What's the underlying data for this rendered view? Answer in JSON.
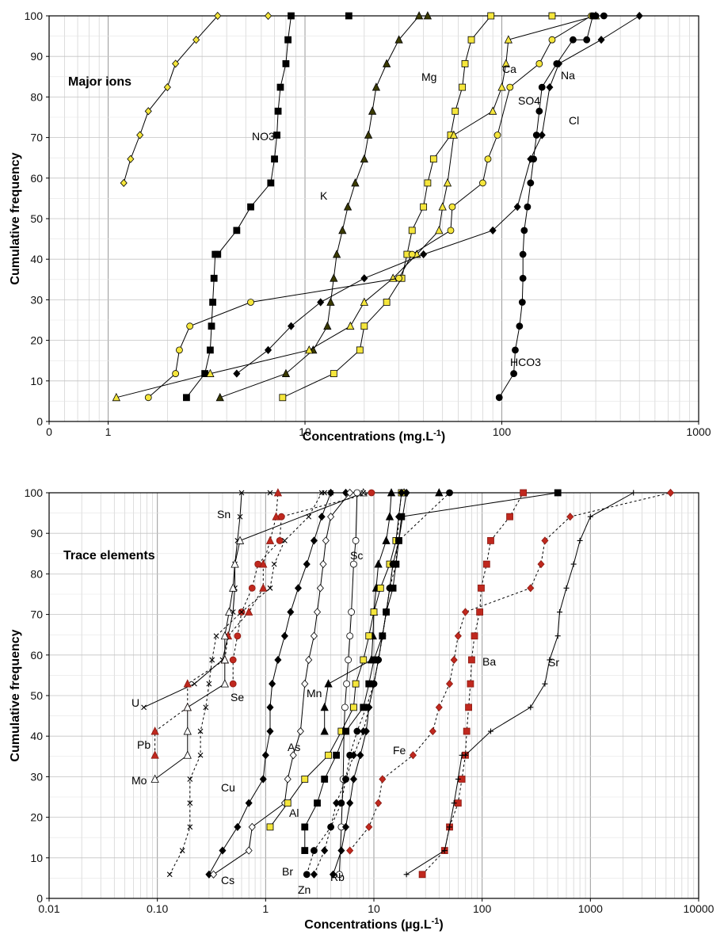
{
  "chart_data": [
    {
      "type": "line",
      "title": "Major ions",
      "ylabel": "Cumulative frequency",
      "xlabel": "Concentrations (mg.L-1)",
      "xlabel_main": "Concentrations (mg.L",
      "xlabel_sup": "-1",
      "xlabel_tail": ")",
      "xscale": "log",
      "xlim": [
        0,
        1000
      ],
      "ylim": [
        0,
        100
      ],
      "grid": true,
      "x_tick_labels": [
        "0",
        "1",
        "10",
        "100",
        "1000"
      ],
      "y_tick_labels": [
        "0",
        "10",
        "20",
        "30",
        "40",
        "50",
        "60",
        "70",
        "80",
        "90",
        "100"
      ],
      "series": [
        {
          "name": "NO3",
          "marker": "diamond",
          "fill": "#f5e63c",
          "dash": "",
          "x": [
            1.2,
            1.3,
            1.45,
            1.6,
            2.0,
            2.2,
            2.8,
            3.6,
            6.5
          ],
          "y": [
            58.8,
            64.7,
            70.6,
            76.5,
            82.4,
            88.2,
            94.1,
            100,
            100
          ]
        },
        {
          "name": "K",
          "marker": "square",
          "fill": "#000000",
          "dash": "",
          "x": [
            2.5,
            3.1,
            3.3,
            3.35,
            3.4,
            3.45,
            3.5,
            3.6,
            4.5,
            5.3,
            6.7,
            7.0,
            7.2,
            7.3,
            7.5,
            8.0,
            8.2,
            8.5,
            16.7
          ],
          "y": [
            5.9,
            11.8,
            17.6,
            23.5,
            29.4,
            35.3,
            41.2,
            41.2,
            47.1,
            52.9,
            58.8,
            64.7,
            70.6,
            76.5,
            82.4,
            88.2,
            94.1,
            100,
            100
          ]
        },
        {
          "name": "Mg",
          "marker": "triangle",
          "fill": "#3a3a00",
          "dash": "",
          "x": [
            3.7,
            8.0,
            11.0,
            13.0,
            13.5,
            14.0,
            14.5,
            15.5,
            16.5,
            18.0,
            20.0,
            21.0,
            22.0,
            23.0,
            26.0,
            30.0,
            38.0,
            42.0
          ],
          "y": [
            5.9,
            11.8,
            17.6,
            23.5,
            29.4,
            35.3,
            41.2,
            47.1,
            52.9,
            58.8,
            64.7,
            70.6,
            76.5,
            82.4,
            88.2,
            94.1,
            100,
            100
          ]
        },
        {
          "name": "Ca",
          "marker": "square",
          "fill": "#f5e63c",
          "dash": "",
          "x": [
            7.7,
            14.0,
            19.0,
            20.0,
            26.0,
            31.0,
            33.0,
            35.0,
            40.0,
            42.0,
            45.0,
            55.0,
            58.0,
            63.0,
            65.0,
            70.0,
            88.0,
            180.0
          ],
          "y": [
            5.9,
            11.8,
            17.6,
            23.5,
            29.4,
            35.3,
            41.2,
            47.1,
            52.9,
            58.8,
            64.7,
            70.6,
            76.5,
            82.4,
            88.2,
            94.1,
            100,
            100
          ]
        },
        {
          "name": "SO4",
          "marker": "triangle",
          "fill": "#f5e63c",
          "dash": "",
          "x": [
            1.1,
            3.3,
            10.5,
            17.0,
            20.0,
            28.0,
            37.0,
            48.0,
            50.0,
            53.0,
            57.0,
            90.0,
            100.0,
            105.0,
            108.0,
            300.0
          ],
          "y": [
            5.9,
            11.8,
            17.6,
            23.5,
            29.4,
            35.3,
            41.2,
            47.1,
            52.9,
            58.8,
            70.6,
            76.5,
            82.4,
            88.2,
            94.1,
            100
          ]
        },
        {
          "name": "Na",
          "marker": "circle",
          "fill": "#f5e63c",
          "dash": "",
          "x": [
            1.6,
            2.2,
            2.3,
            2.6,
            5.3,
            30.0,
            35.0,
            55.0,
            56.0,
            80.0,
            85.0,
            95.0,
            110.0,
            155.0,
            180.0,
            285.0
          ],
          "y": [
            5.9,
            11.8,
            17.6,
            23.5,
            29.4,
            35.3,
            41.2,
            47.1,
            52.9,
            58.8,
            64.7,
            70.6,
            82.4,
            88.2,
            94.1,
            100
          ]
        },
        {
          "name": "Cl",
          "marker": "diamond",
          "fill": "#000000",
          "dash": "",
          "x": [
            4.5,
            6.5,
            8.5,
            12.0,
            20.0,
            40.0,
            90.0,
            120.0,
            140.0,
            160.0,
            175.0,
            195.0,
            320.0,
            500.0
          ],
          "y": [
            11.8,
            17.6,
            23.5,
            29.4,
            35.3,
            41.2,
            47.1,
            52.9,
            64.7,
            70.6,
            82.4,
            88.2,
            94.1,
            100
          ]
        },
        {
          "name": "HCO3",
          "marker": "circle",
          "fill": "#000000",
          "dash": "",
          "x": [
            97.0,
            115.0,
            117.0,
            123.0,
            127.0,
            128.0,
            128.0,
            130.0,
            135.0,
            140.0,
            145.0,
            150.0,
            155.0,
            160.0,
            190.0,
            230.0,
            270.0,
            290.0,
            300.0,
            330.0
          ],
          "y": [
            5.9,
            11.8,
            17.6,
            23.5,
            29.4,
            35.3,
            41.2,
            47.1,
            52.9,
            58.8,
            64.7,
            70.6,
            76.5,
            82.4,
            88.2,
            94.1,
            94.1,
            100,
            100,
            100
          ]
        }
      ]
    },
    {
      "type": "line",
      "title": "Trace elements",
      "ylabel": "Cumulative frequency",
      "xlabel": "Concentrations (µg.L-1)",
      "xlabel_main": "Concentrations (µg.L",
      "xlabel_sup": "-1",
      "xlabel_tail": ")",
      "xscale": "log",
      "xlim": [
        0.01,
        10000
      ],
      "ylim": [
        0,
        100
      ],
      "grid": true,
      "x_tick_labels": [
        "0.01",
        "0.10",
        "1",
        "10",
        "100",
        "1000",
        "10000"
      ],
      "y_tick_labels": [
        "0",
        "10",
        "20",
        "30",
        "40",
        "50",
        "60",
        "70",
        "80",
        "90",
        "100"
      ],
      "series": [
        {
          "name": "U",
          "marker": "x",
          "fill": "#000000",
          "dash": "",
          "x": [
            0.075,
            0.22,
            0.4,
            0.45,
            0.5,
            0.52,
            0.52,
            0.55,
            0.58,
            0.6,
            1.1
          ],
          "y": [
            47.1,
            52.9,
            58.8,
            64.7,
            70.6,
            76.5,
            82.4,
            88.2,
            94.1,
            100,
            100
          ]
        },
        {
          "name": "Pb",
          "marker": "triangle",
          "fill": "#c0281e",
          "dash": "3,3",
          "x": [
            0.095,
            0.095,
            0.19,
            0.19,
            0.42,
            0.45,
            0.7,
            0.95,
            0.95,
            1.1,
            1.25,
            1.3
          ],
          "y": [
            35.3,
            41.2,
            47.1,
            52.9,
            58.8,
            64.7,
            70.6,
            76.5,
            82.4,
            88.2,
            94.1,
            100
          ]
        },
        {
          "name": "Mo",
          "marker": "triangle-open",
          "fill": "#ffffff",
          "dash": "",
          "x": [
            0.095,
            0.19,
            0.19,
            0.19,
            0.42,
            0.42,
            0.42,
            0.46,
            0.5,
            0.52,
            0.58,
            8.0
          ],
          "y": [
            29.4,
            35.3,
            41.2,
            47.1,
            52.9,
            58.8,
            64.7,
            70.6,
            76.5,
            82.4,
            88.2,
            100
          ]
        },
        {
          "name": "Se",
          "marker": "circle",
          "fill": "#c0281e",
          "dash": "3,3",
          "x": [
            0.5,
            0.5,
            0.55,
            0.6,
            0.75,
            0.85,
            1.35,
            1.4,
            9.5
          ],
          "y": [
            52.9,
            58.8,
            64.7,
            70.6,
            76.5,
            82.4,
            88.2,
            94.1,
            100
          ]
        },
        {
          "name": "Sn",
          "marker": "x",
          "fill": "#000000",
          "dash": "3,3",
          "x": [
            0.13,
            0.17,
            0.2,
            0.2,
            0.2,
            0.25,
            0.25,
            0.28,
            0.3,
            0.32,
            0.35,
            0.6,
            1.1,
            1.2,
            1.5,
            2.5,
            3.3,
            3.5,
            4.0,
            8.0
          ],
          "y": [
            5.9,
            11.8,
            17.6,
            23.5,
            29.4,
            35.3,
            41.2,
            47.1,
            52.9,
            58.8,
            64.7,
            70.6,
            76.5,
            82.4,
            88.2,
            94.1,
            100,
            100,
            100,
            100
          ]
        },
        {
          "name": "Cu",
          "marker": "diamond",
          "fill": "#000000",
          "dash": "",
          "x": [
            0.3,
            0.4,
            0.55,
            0.7,
            0.95,
            1.0,
            1.1,
            1.1,
            1.15,
            1.3,
            1.5,
            1.7,
            2.0,
            2.4,
            2.8,
            3.3,
            4.0,
            5.5
          ],
          "y": [
            5.9,
            11.8,
            17.6,
            23.5,
            29.4,
            35.3,
            41.2,
            47.1,
            52.9,
            58.8,
            64.7,
            70.6,
            76.5,
            82.4,
            88.2,
            94.1,
            100,
            100
          ]
        },
        {
          "name": "Cs",
          "marker": "diamond-open",
          "fill": "#ffffff",
          "dash": "",
          "x": [
            0.33,
            0.7,
            0.75,
            1.5,
            1.6,
            1.8,
            2.1,
            2.3,
            2.5,
            2.8,
            3.0,
            3.2,
            3.4,
            3.6,
            4.0,
            6.0
          ],
          "y": [
            5.9,
            11.8,
            17.6,
            23.5,
            29.4,
            35.3,
            41.2,
            52.9,
            58.8,
            64.7,
            70.6,
            76.5,
            82.4,
            88.2,
            94.1,
            100
          ]
        },
        {
          "name": "Mn",
          "marker": "triangle",
          "fill": "#000000",
          "dash": "",
          "x": [
            3.5,
            3.5,
            3.8,
            9.5,
            9.8,
            10.0,
            10.5,
            11.0,
            13.0,
            14.0,
            14.5,
            19.0,
            40.0
          ],
          "y": [
            41.2,
            47.1,
            52.9,
            58.8,
            64.7,
            70.6,
            76.5,
            82.4,
            88.2,
            94.1,
            100,
            100,
            100
          ]
        },
        {
          "name": "Sc",
          "marker": "circle-open",
          "fill": "#ffffff",
          "dash": "",
          "x": [
            4.8,
            5.0,
            5.2,
            5.3,
            5.4,
            5.6,
            5.8,
            6.0,
            6.2,
            6.5,
            6.8,
            7.0
          ],
          "y": [
            5.9,
            17.6,
            29.4,
            41.2,
            47.1,
            52.9,
            58.8,
            64.7,
            70.6,
            82.4,
            88.2,
            100
          ]
        },
        {
          "name": "As",
          "marker": "square",
          "fill": "#f5e63c",
          "dash": "",
          "x": [
            1.1,
            1.6,
            2.3,
            3.8,
            5.0,
            6.5,
            6.8,
            8.0,
            9.0,
            10.0,
            11.5,
            14.0,
            16.0,
            18.0
          ],
          "y": [
            17.6,
            23.5,
            29.4,
            35.3,
            41.2,
            47.1,
            52.9,
            58.8,
            64.7,
            70.6,
            76.5,
            82.4,
            88.2,
            100
          ]
        },
        {
          "name": "Al",
          "marker": "square",
          "fill": "#000000",
          "dash": "",
          "x": [
            2.3,
            2.3,
            3.0,
            3.5,
            4.5,
            5.5,
            8.0,
            9.0,
            10.0,
            12.0,
            13.0,
            15.0,
            16.0,
            17.0,
            18.0,
            500.0
          ],
          "y": [
            11.8,
            17.6,
            23.5,
            29.4,
            35.3,
            41.2,
            47.1,
            52.9,
            58.8,
            64.7,
            70.6,
            76.5,
            82.4,
            88.2,
            94.1,
            100
          ]
        },
        {
          "name": "Br",
          "marker": "circle",
          "fill": "#000000",
          "dash": "3,3",
          "x": [
            2.4,
            2.8,
            4.0,
            5.0,
            5.5,
            6.0,
            7.0,
            8.5,
            10.0,
            11.0,
            12.0,
            13.0,
            14.0,
            15.0,
            17.0,
            50.0
          ],
          "y": [
            5.9,
            11.8,
            17.6,
            23.5,
            29.4,
            35.3,
            41.2,
            47.1,
            52.9,
            58.8,
            64.7,
            70.6,
            76.5,
            82.4,
            88.2,
            100
          ]
        },
        {
          "name": "Zn",
          "marker": "diamond",
          "fill": "#000000",
          "dash": "3,3",
          "x": [
            2.8,
            3.5,
            4.0,
            4.5,
            5.5,
            6.5,
            8.0,
            9.0,
            10.0,
            11.0,
            12.0,
            13.0,
            14.0,
            16.0,
            17.0,
            18.0
          ],
          "y": [
            5.9,
            11.8,
            17.6,
            23.5,
            29.4,
            35.3,
            41.2,
            47.1,
            52.9,
            58.8,
            64.7,
            70.6,
            76.5,
            82.4,
            94.1,
            100
          ]
        },
        {
          "name": "Rb",
          "marker": "diamond",
          "fill": "#000000",
          "dash": "",
          "x": [
            4.2,
            5.0,
            5.5,
            6.0,
            6.5,
            7.5,
            8.5,
            9.0,
            10.0,
            11.0,
            12.0,
            13.0,
            14.0,
            15.0,
            17.0,
            20.0
          ],
          "y": [
            5.9,
            11.8,
            17.6,
            23.5,
            29.4,
            35.3,
            41.2,
            47.1,
            52.9,
            58.8,
            64.7,
            70.6,
            76.5,
            82.4,
            88.2,
            100
          ]
        },
        {
          "name": "Fe",
          "marker": "diamond",
          "fill": "#c0281e",
          "dash": "3,3",
          "x": [
            6.0,
            9.0,
            11.0,
            12.0,
            23.0,
            35.0,
            40.0,
            50.0,
            55.0,
            60.0,
            70.0,
            280.0,
            350.0,
            380.0,
            650.0,
            5500.0
          ],
          "y": [
            11.8,
            17.6,
            23.5,
            29.4,
            35.3,
            41.2,
            47.1,
            52.9,
            58.8,
            64.7,
            70.6,
            76.5,
            82.4,
            88.2,
            94.1,
            100
          ]
        },
        {
          "name": "Ba",
          "marker": "square",
          "fill": "#c0281e",
          "dash": "3,3",
          "x": [
            28.0,
            45.0,
            50.0,
            60.0,
            65.0,
            70.0,
            72.0,
            75.0,
            78.0,
            80.0,
            85.0,
            95.0,
            98.0,
            110.0,
            120.0,
            180.0,
            240.0
          ],
          "y": [
            5.9,
            11.8,
            17.6,
            23.5,
            29.4,
            35.3,
            41.2,
            47.1,
            52.9,
            58.8,
            64.7,
            70.6,
            76.5,
            82.4,
            88.2,
            94.1,
            100
          ]
        },
        {
          "name": "Sr",
          "marker": "plus",
          "fill": "#000000",
          "dash": "",
          "x": [
            20.0,
            45.0,
            50.0,
            55.0,
            60.0,
            65.0,
            70.0,
            120.0,
            280.0,
            380.0,
            420.0,
            500.0,
            520.0,
            600.0,
            700.0,
            800.0,
            1000.0,
            2500.0
          ],
          "y": [
            5.9,
            11.8,
            17.6,
            23.5,
            29.4,
            35.3,
            35.3,
            41.2,
            47.1,
            52.9,
            58.8,
            64.7,
            70.6,
            76.5,
            82.4,
            88.2,
            94.1,
            100
          ]
        }
      ]
    }
  ]
}
